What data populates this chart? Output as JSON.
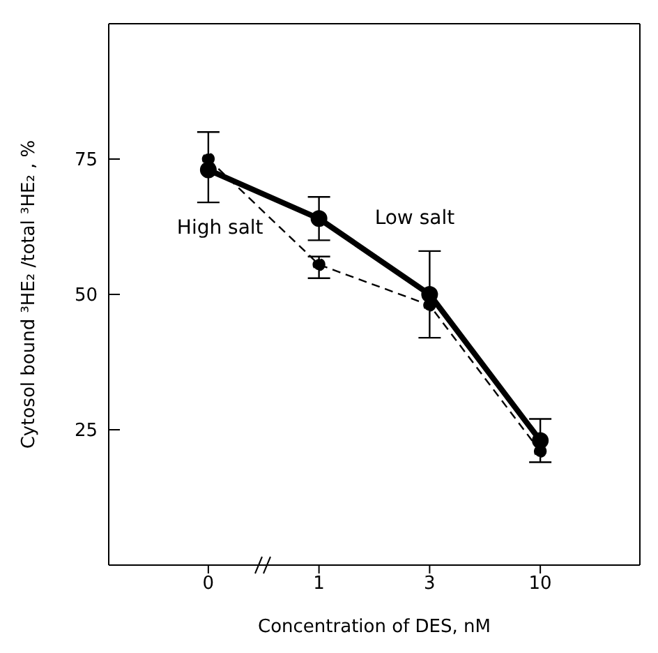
{
  "chart_data": {
    "type": "line",
    "xlabel": "Concentration of DES, nM",
    "ylabel": "Cytosol bound ³HE₂ /total ³HE₂ , %",
    "categories": [
      "0",
      "1",
      "3",
      "10"
    ],
    "series": [
      {
        "name": "Low salt",
        "color": "#000000",
        "line_style": "solid",
        "values": [
          73,
          64,
          50,
          23
        ],
        "errors": [
          [
            67,
            80
          ],
          [
            60,
            68
          ],
          [
            42,
            58
          ],
          [
            19,
            27
          ]
        ]
      },
      {
        "name": "High salt",
        "color": "#000000",
        "line_style": "dashed",
        "values": [
          75,
          55.5,
          48,
          21
        ],
        "errors": [
          null,
          [
            53,
            57
          ],
          null,
          null
        ]
      }
    ],
    "ylim": [
      0,
      100
    ],
    "yticks": [
      25,
      50,
      75
    ],
    "marker": "circle"
  }
}
